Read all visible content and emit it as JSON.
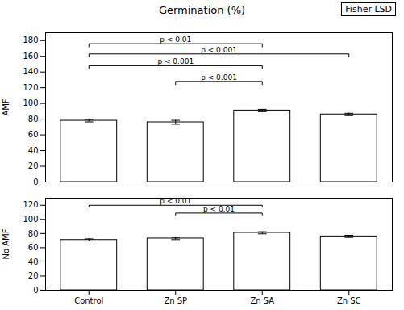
{
  "chart_data": [
    {
      "type": "bar",
      "title": "Germination (%)",
      "annotations": [
        "Fisher LSD"
      ],
      "ylabel": "AMF",
      "categories": [
        "Control",
        "Zn SP",
        "Zn SA",
        "Zn SC"
      ],
      "values": [
        78,
        76,
        91,
        86
      ],
      "errors": [
        1.5,
        2.5,
        1.5,
        1.5
      ],
      "color": "white",
      "ylim": [
        0,
        190
      ],
      "yticks": [
        0,
        20,
        40,
        60,
        80,
        100,
        120,
        140,
        160,
        180
      ],
      "tick_labels": "y",
      "grid": false,
      "significance": [
        {
          "from": "Control",
          "to": "Zn SA",
          "y": 176,
          "label": "p < 0.01"
        },
        {
          "from": "Control",
          "to": "Zn SC",
          "y": 163,
          "label": "p < 0.001"
        },
        {
          "from": "Control",
          "to": "Zn SA",
          "y": 148,
          "label": "p < 0.001"
        },
        {
          "from": "Zn SP",
          "to": "Zn SA",
          "y": 128,
          "label": "p < 0.001"
        }
      ]
    },
    {
      "type": "bar",
      "ylabel": "No AMF",
      "categories": [
        "Control",
        "Zn SP",
        "Zn SA",
        "Zn SC"
      ],
      "values": [
        71,
        73,
        81,
        76
      ],
      "errors": [
        1.5,
        1.5,
        1.5,
        1.5
      ],
      "color": "white",
      "ylim": [
        0,
        130
      ],
      "yticks": [
        0,
        20,
        40,
        60,
        80,
        100,
        120
      ],
      "grid": false,
      "significance": [
        {
          "from": "Control",
          "to": "Zn SA",
          "y": 120,
          "label": "p < 0.01"
        },
        {
          "from": "Zn SP",
          "to": "Zn SA",
          "y": 109,
          "label": "p < 0.01"
        }
      ]
    }
  ]
}
